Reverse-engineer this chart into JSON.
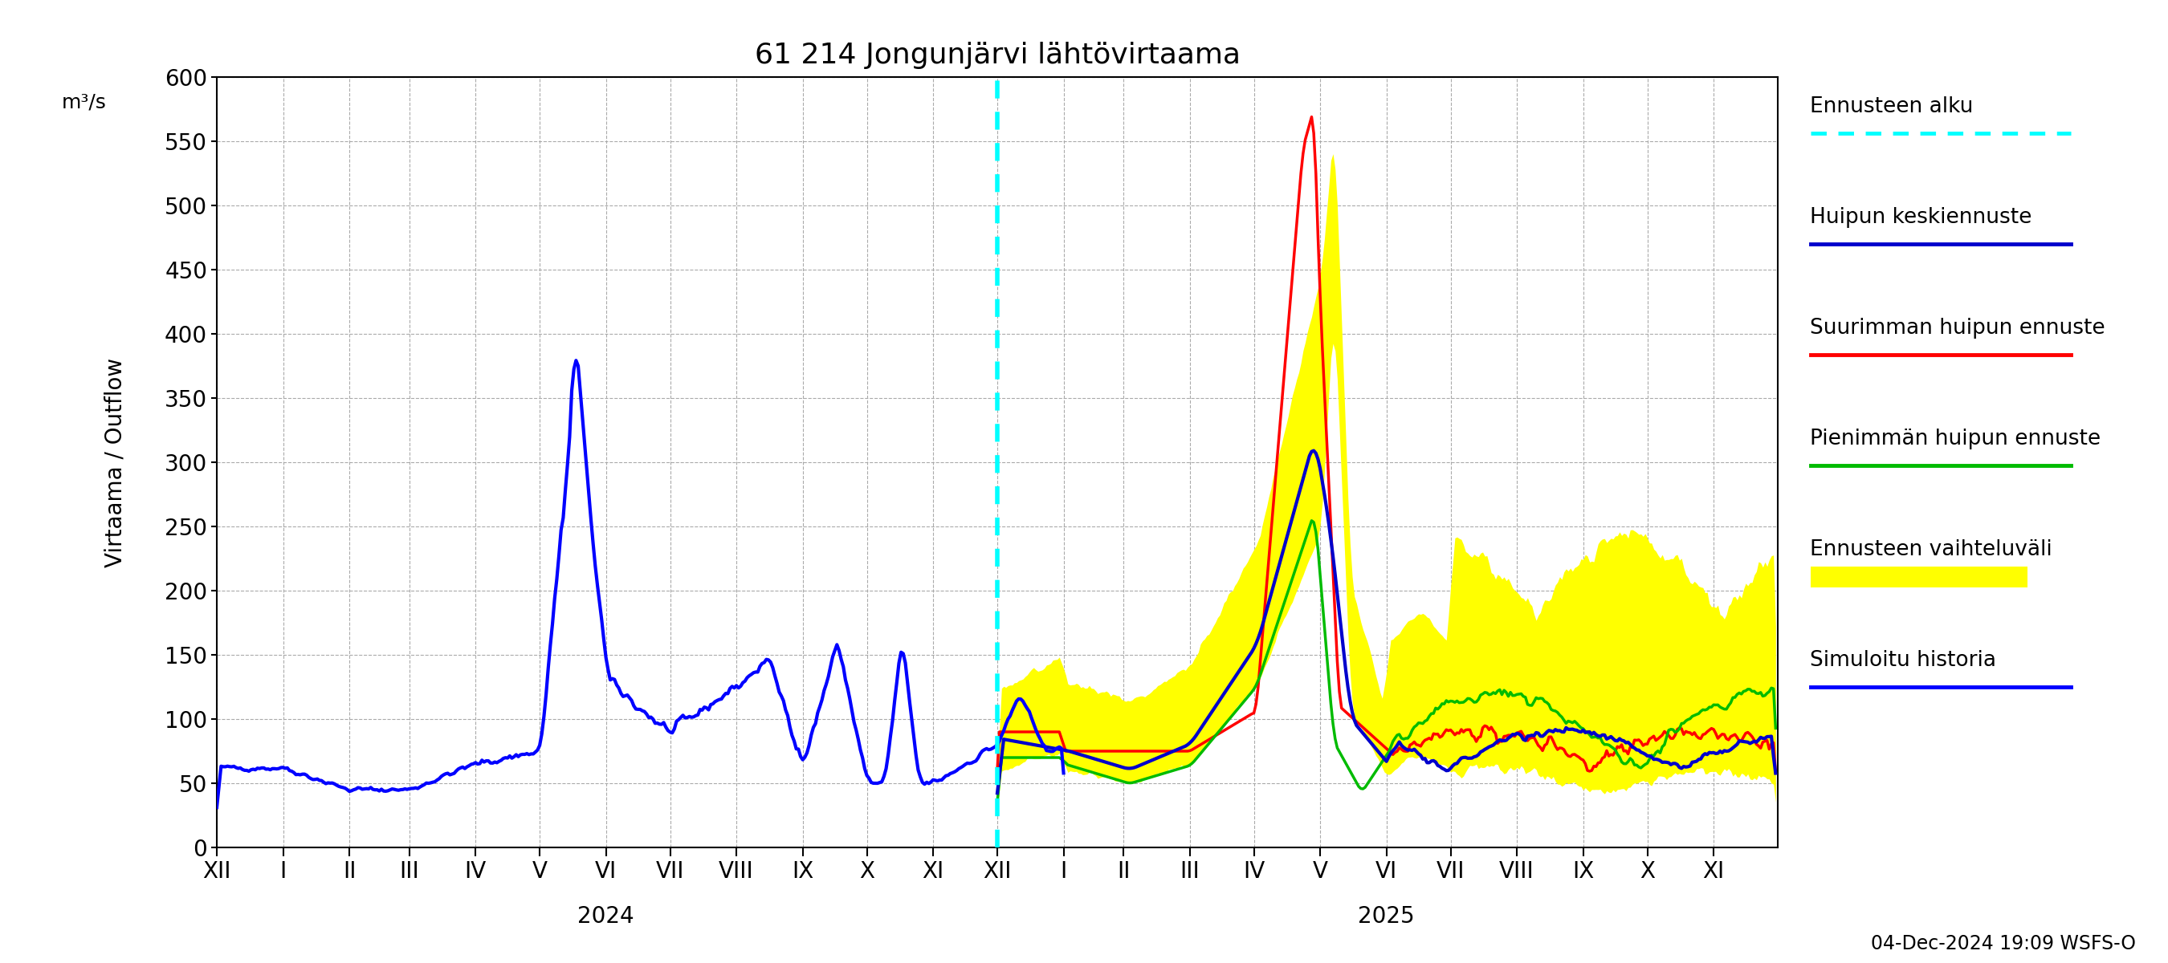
{
  "title": "61 214 Jongunjärvi lähtövirtaama",
  "ylabel1": "Virtaama / Outflow",
  "ylabel2": "m³/s",
  "xlabel_bottom": "04-Dec-2024 19:09 WSFS-O",
  "ylim": [
    0,
    600
  ],
  "yticks": [
    0,
    50,
    100,
    150,
    200,
    250,
    300,
    350,
    400,
    450,
    500,
    550,
    600
  ],
  "colors": {
    "history": "#0000FF",
    "mean_forecast": "#0000CC",
    "max_forecast": "#FF0000",
    "min_forecast": "#00BB00",
    "envelope": "#FFFF00",
    "forecast_start": "#00FFFF",
    "grid": "#AAAAAA"
  },
  "legend_labels": [
    "Ennusteen alku",
    "Huipun keskiennuste",
    "Suurimman huipun ennuste",
    "Pienimmän huipun ennuste",
    "Ennusteen vaihteluväli",
    "Simuloitu historia"
  ],
  "background_color": "#FFFFFF"
}
